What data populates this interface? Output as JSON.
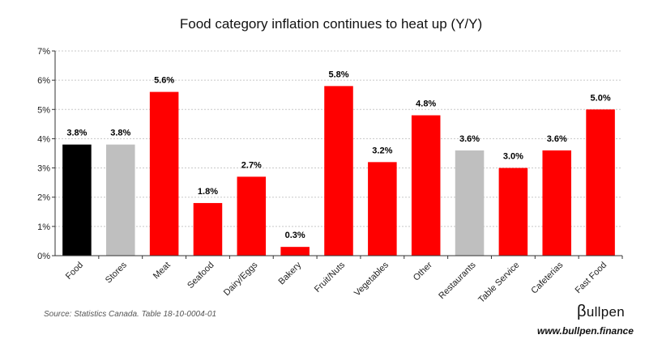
{
  "chart_data": {
    "type": "bar",
    "title": "Food category inflation continues to heat up (Y/Y)",
    "categories": [
      "Food",
      "Stores",
      "Meat",
      "Seafood",
      "Dairy/Eggs",
      "Bakery",
      "Fruit/Nuts",
      "Vegetables",
      "Other",
      "Restaurants",
      "Table Service",
      "Cafeterias",
      "Fast Food"
    ],
    "values": [
      3.8,
      3.8,
      5.6,
      1.8,
      2.7,
      0.3,
      5.8,
      3.2,
      4.8,
      3.6,
      3.0,
      3.6,
      5.0
    ],
    "data_labels": [
      "3.8%",
      "3.8%",
      "5.6%",
      "1.8%",
      "2.7%",
      "0.3%",
      "5.8%",
      "3.2%",
      "4.8%",
      "3.6%",
      "3.0%",
      "3.6%",
      "5.0%"
    ],
    "bar_colors": [
      "#000000",
      "#bfbfbf",
      "#ff0000",
      "#ff0000",
      "#ff0000",
      "#ff0000",
      "#ff0000",
      "#ff0000",
      "#ff0000",
      "#bfbfbf",
      "#ff0000",
      "#ff0000",
      "#ff0000"
    ],
    "y_tick_labels": [
      "0%",
      "1%",
      "2%",
      "3%",
      "4%",
      "5%",
      "6%",
      "7%"
    ],
    "ylim": [
      0,
      7
    ],
    "xlabel": "",
    "ylabel": "",
    "grid": true,
    "legend": "none"
  },
  "footer": {
    "source": "Source: Statistics Canada. Table 18-10-0004-01",
    "brand_symbol": "β",
    "brand_name": "ullpen",
    "brand_url": "www.bullpen.finance"
  }
}
